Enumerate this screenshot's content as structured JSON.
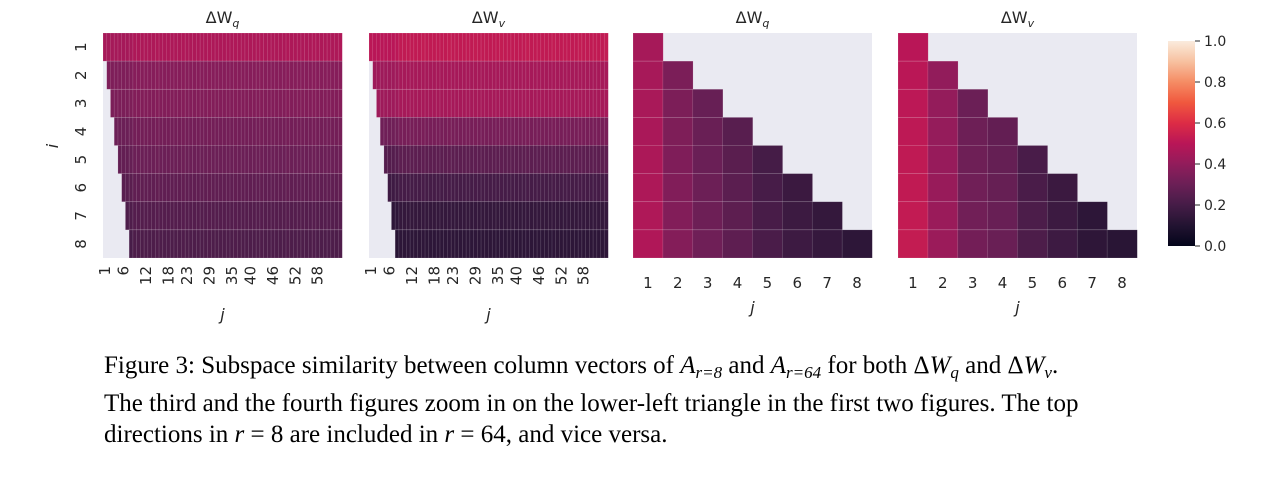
{
  "chart_data": [
    {
      "type": "heatmap",
      "title": "ΔW_q",
      "title_main": "ΔW",
      "title_sub": "q",
      "xlabel": "j",
      "ylabel": "i",
      "rows": [
        "1",
        "2",
        "3",
        "4",
        "5",
        "6",
        "7",
        "8"
      ],
      "n_cols": 64,
      "xtick_labels": [
        "1",
        "6",
        "12",
        "18",
        "23",
        "29",
        "35",
        "40",
        "46",
        "52",
        "58"
      ],
      "xtick_rotated": true,
      "mask": "upper-left (j < i)",
      "row_values": [
        0.47,
        0.37,
        0.36,
        0.32,
        0.3,
        0.27,
        0.24,
        0.22
      ]
    },
    {
      "type": "heatmap",
      "title": "ΔW_v",
      "title_main": "ΔW",
      "title_sub": "v",
      "xlabel": "j",
      "ylabel": "",
      "rows": [
        "1",
        "2",
        "3",
        "4",
        "5",
        "6",
        "7",
        "8"
      ],
      "n_cols": 64,
      "xtick_labels": [
        "1",
        "6",
        "12",
        "18",
        "23",
        "29",
        "35",
        "40",
        "46",
        "52",
        "58"
      ],
      "xtick_rotated": true,
      "mask": "upper-left (j < i)",
      "row_values": [
        0.52,
        0.45,
        0.45,
        0.33,
        0.26,
        0.2,
        0.15,
        0.13
      ]
    },
    {
      "type": "heatmap",
      "title": "ΔW_q",
      "title_main": "ΔW",
      "title_sub": "q",
      "xlabel": "j",
      "ylabel": "",
      "rows": [
        "1",
        "2",
        "3",
        "4",
        "5",
        "6",
        "7",
        "8"
      ],
      "n_cols": 8,
      "xtick_labels": [
        "1",
        "2",
        "3",
        "4",
        "5",
        "6",
        "7",
        "8"
      ],
      "xtick_rotated": false,
      "mask": "upper-right (j > i)",
      "col_values": [
        0.45,
        0.34,
        0.29,
        0.25,
        0.2,
        0.17,
        0.15,
        0.13
      ]
    },
    {
      "type": "heatmap",
      "title": "ΔW_v",
      "title_main": "ΔW",
      "title_sub": "v",
      "xlabel": "j",
      "ylabel": "",
      "rows": [
        "1",
        "2",
        "3",
        "4",
        "5",
        "6",
        "7",
        "8"
      ],
      "n_cols": 8,
      "xtick_labels": [
        "1",
        "2",
        "3",
        "4",
        "5",
        "6",
        "7",
        "8"
      ],
      "xtick_rotated": false,
      "mask": "upper-right (j > i)",
      "col_values": [
        0.5,
        0.4,
        0.3,
        0.28,
        0.21,
        0.17,
        0.13,
        0.12
      ]
    }
  ],
  "colorbar": {
    "colormap": "rocket",
    "range": [
      0.0,
      1.0
    ],
    "tick_labels": [
      "0.0",
      "0.2",
      "0.4",
      "0.6",
      "0.8",
      "1.0"
    ],
    "tick_values": [
      0.0,
      0.2,
      0.4,
      0.6,
      0.8,
      1.0
    ]
  },
  "colors": {
    "mask": "#eaeaf2",
    "text": "#262626"
  },
  "caption": {
    "lines": [
      [
        {
          "t": "Figure 3: Subspace similarity between column vectors of "
        },
        {
          "t": "A",
          "c": "m"
        },
        {
          "t": "r=8",
          "c": "subi"
        },
        {
          "t": " and "
        },
        {
          "t": "A",
          "c": "m"
        },
        {
          "t": "r=64",
          "c": "subi"
        },
        {
          "t": " for both Δ"
        },
        {
          "t": "W",
          "c": "m"
        },
        {
          "t": "q",
          "c": "subi"
        },
        {
          "t": " and Δ"
        },
        {
          "t": "W",
          "c": "m"
        },
        {
          "t": "v",
          "c": "subi"
        },
        {
          "t": "."
        }
      ],
      [
        {
          "t": "The third and the fourth figures zoom in on the lower-left triangle in the first two figures. The top"
        }
      ],
      [
        {
          "t": "directions in "
        },
        {
          "t": "r",
          "c": "m"
        },
        {
          "t": " = 8 are included in "
        },
        {
          "t": "r",
          "c": "m"
        },
        {
          "t": " = 64, and vice versa."
        }
      ]
    ]
  }
}
